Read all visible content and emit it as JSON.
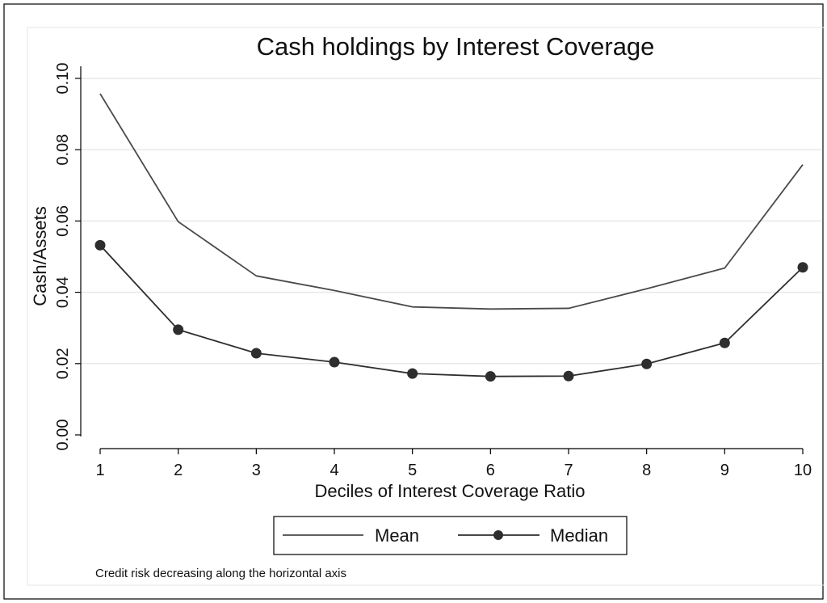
{
  "chart_data": {
    "type": "line",
    "title": "Cash holdings by Interest Coverage",
    "xlabel": "Deciles of Interest Coverage Ratio",
    "ylabel": "Cash/Assets",
    "x": [
      1,
      2,
      3,
      4,
      5,
      6,
      7,
      8,
      9,
      10
    ],
    "xticks": [
      "1",
      "2",
      "3",
      "4",
      "5",
      "6",
      "7",
      "8",
      "9",
      "10"
    ],
    "yticks": [
      "0.00",
      "0.02",
      "0.04",
      "0.06",
      "0.08",
      "0.10"
    ],
    "ytick_values": [
      0,
      0.02,
      0.04,
      0.06,
      0.08,
      0.1
    ],
    "xlim": [
      1,
      10
    ],
    "ylim": [
      0,
      0.1
    ],
    "grid": true,
    "legend_position": "bottom",
    "series": [
      {
        "name": "Mean",
        "marker": "none",
        "color": "#4a4a4a",
        "values": [
          0.0957,
          0.0598,
          0.0446,
          0.0405,
          0.0359,
          0.0353,
          0.0355,
          0.041,
          0.0468,
          0.0758
        ]
      },
      {
        "name": "Median",
        "marker": "circle",
        "color": "#2e2e2e",
        "values": [
          0.0532,
          0.0295,
          0.0229,
          0.0204,
          0.0172,
          0.0164,
          0.0165,
          0.0199,
          0.0258,
          0.047
        ]
      }
    ],
    "note": "Credit risk decreasing along the horizontal axis"
  }
}
